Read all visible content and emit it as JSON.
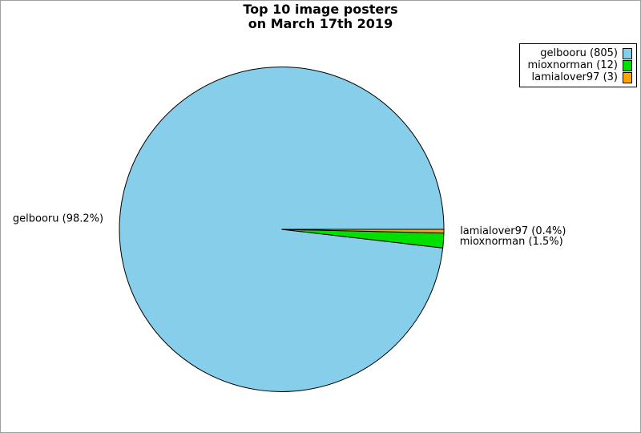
{
  "frame": {
    "background": "#ffffff",
    "border_color": "#a0a0a0"
  },
  "title": {
    "line1": "Top 10 image posters",
    "line2": "on March 17th 2019"
  },
  "chart_data": {
    "type": "pie",
    "title": "Top 10 image posters on March 17th 2019",
    "start_angle_deg": 0,
    "direction": "counterclockwise",
    "edge_color": "#000000",
    "legend_position": "top-right",
    "series": [
      {
        "name": "gelbooru",
        "value": 805,
        "percent": 98.2,
        "slice_label": "gelbooru (98.2%)",
        "color": "#87CEEB"
      },
      {
        "name": "mioxnorman",
        "value": 12,
        "percent": 1.5,
        "slice_label": "mioxnorman (1.5%)",
        "color": "#00E000"
      },
      {
        "name": "lamialover97",
        "value": 3,
        "percent": 0.4,
        "slice_label": "lamialover97 (0.4%)",
        "color": "#FFA500"
      }
    ]
  },
  "legend": {
    "entries": [
      {
        "name": "gelbooru",
        "label": "gelbooru (805)",
        "color": "#87CEEB"
      },
      {
        "name": "mioxnorman",
        "label": "mioxnorman (12)",
        "color": "#00E000"
      },
      {
        "name": "lamialover97",
        "label": "lamialover97 (3)",
        "color": "#FFA500"
      }
    ]
  }
}
